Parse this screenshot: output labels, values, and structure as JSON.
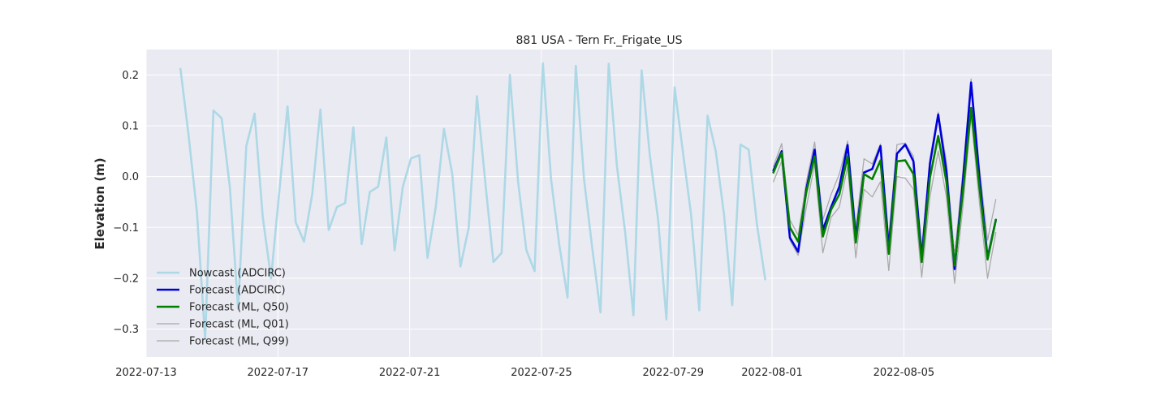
{
  "chart_data": {
    "type": "line",
    "title": "881 USA - Tern Fr._Frigate_US",
    "xlabel": "",
    "ylabel": "Elevation (m)",
    "x_axis": "date",
    "xlim": [
      "2022-07-13T00:00",
      "2022-08-09T12:00"
    ],
    "ylim": [
      -0.355,
      0.25
    ],
    "x_ticks": [
      "2022-07-13",
      "2022-07-17",
      "2022-07-21",
      "2022-07-25",
      "2022-07-29",
      "2022-08-01",
      "2022-08-05"
    ],
    "y_ticks": [
      0.2,
      0.1,
      0.0,
      -0.1,
      -0.2,
      -0.3
    ],
    "y_tick_labels": [
      "0.2",
      "0.1",
      "0.0",
      "−0.1",
      "−0.2",
      "−0.3"
    ],
    "grid": true,
    "legend_position": "lower-left",
    "series": [
      {
        "name": "Nowcast (ADCIRC)",
        "color": "#add8e6",
        "width": 2.6,
        "points": [
          [
            "2022-07-14T01:00",
            0.212
          ],
          [
            "2022-07-14T07:00",
            0.08
          ],
          [
            "2022-07-14T13:00",
            -0.07
          ],
          [
            "2022-07-14T19:00",
            -0.32
          ],
          [
            "2022-07-15T01:00",
            0.13
          ],
          [
            "2022-07-15T07:00",
            0.115
          ],
          [
            "2022-07-15T13:00",
            -0.02
          ],
          [
            "2022-07-15T19:00",
            -0.26
          ],
          [
            "2022-07-16T01:00",
            0.06
          ],
          [
            "2022-07-16T07:00",
            0.124
          ],
          [
            "2022-07-16T13:00",
            -0.08
          ],
          [
            "2022-07-16T19:00",
            -0.2
          ],
          [
            "2022-07-17T01:00",
            -0.03
          ],
          [
            "2022-07-17T07:00",
            0.138
          ],
          [
            "2022-07-17T13:00",
            -0.09
          ],
          [
            "2022-07-17T19:00",
            -0.128
          ],
          [
            "2022-07-18T01:00",
            -0.035
          ],
          [
            "2022-07-18T07:00",
            0.132
          ],
          [
            "2022-07-18T13:00",
            -0.105
          ],
          [
            "2022-07-18T19:00",
            -0.06
          ],
          [
            "2022-07-19T01:00",
            -0.052
          ],
          [
            "2022-07-19T07:00",
            0.097
          ],
          [
            "2022-07-19T13:00",
            -0.133
          ],
          [
            "2022-07-19T19:00",
            -0.03
          ],
          [
            "2022-07-20T01:00",
            -0.02
          ],
          [
            "2022-07-20T07:00",
            0.077
          ],
          [
            "2022-07-20T13:00",
            -0.145
          ],
          [
            "2022-07-20T19:00",
            -0.02
          ],
          [
            "2022-07-21T01:00",
            0.036
          ],
          [
            "2022-07-21T07:00",
            0.042
          ],
          [
            "2022-07-21T13:00",
            -0.16
          ],
          [
            "2022-07-21T19:00",
            -0.06
          ],
          [
            "2022-07-22T01:00",
            0.094
          ],
          [
            "2022-07-22T07:00",
            0.005
          ],
          [
            "2022-07-22T13:00",
            -0.177
          ],
          [
            "2022-07-22T19:00",
            -0.1
          ],
          [
            "2022-07-23T01:00",
            0.158
          ],
          [
            "2022-07-23T07:00",
            -0.01
          ],
          [
            "2022-07-23T13:00",
            -0.168
          ],
          [
            "2022-07-23T19:00",
            -0.15
          ],
          [
            "2022-07-24T01:00",
            0.2
          ],
          [
            "2022-07-24T07:00",
            -0.01
          ],
          [
            "2022-07-24T13:00",
            -0.145
          ],
          [
            "2022-07-24T19:00",
            -0.186
          ],
          [
            "2022-07-25T01:00",
            0.223
          ],
          [
            "2022-07-25T07:00",
            -0.005
          ],
          [
            "2022-07-25T13:00",
            -0.135
          ],
          [
            "2022-07-25T19:00",
            -0.238
          ],
          [
            "2022-07-26T01:00",
            0.218
          ],
          [
            "2022-07-26T07:00",
            -0.005
          ],
          [
            "2022-07-26T13:00",
            -0.14
          ],
          [
            "2022-07-26T19:00",
            -0.267
          ],
          [
            "2022-07-27T01:00",
            0.222
          ],
          [
            "2022-07-27T07:00",
            0.02
          ],
          [
            "2022-07-27T13:00",
            -0.11
          ],
          [
            "2022-07-27T19:00",
            -0.273
          ],
          [
            "2022-07-28T01:00",
            0.209
          ],
          [
            "2022-07-28T07:00",
            0.04
          ],
          [
            "2022-07-28T13:00",
            -0.085
          ],
          [
            "2022-07-28T19:00",
            -0.281
          ],
          [
            "2022-07-29T01:00",
            0.176
          ],
          [
            "2022-07-29T07:00",
            0.05
          ],
          [
            "2022-07-29T13:00",
            -0.075
          ],
          [
            "2022-07-29T19:00",
            -0.263
          ],
          [
            "2022-07-30T01:00",
            0.12
          ],
          [
            "2022-07-30T07:00",
            0.05
          ],
          [
            "2022-07-30T13:00",
            -0.075
          ],
          [
            "2022-07-30T19:00",
            -0.253
          ],
          [
            "2022-07-31T01:00",
            0.063
          ],
          [
            "2022-07-31T07:00",
            0.053
          ],
          [
            "2022-07-31T13:00",
            -0.095
          ],
          [
            "2022-07-31T19:00",
            -0.202
          ]
        ]
      },
      {
        "name": "Forecast (ADCIRC)",
        "color": "#0000dd",
        "width": 2.6,
        "points": [
          [
            "2022-08-01T01:00",
            0.012
          ],
          [
            "2022-08-01T07:00",
            0.05
          ],
          [
            "2022-08-01T13:00",
            -0.12
          ],
          [
            "2022-08-01T19:00",
            -0.148
          ],
          [
            "2022-08-02T01:00",
            -0.025
          ],
          [
            "2022-08-02T07:00",
            0.053
          ],
          [
            "2022-08-02T13:00",
            -0.105
          ],
          [
            "2022-08-02T19:00",
            -0.06
          ],
          [
            "2022-08-03T01:00",
            -0.02
          ],
          [
            "2022-08-03T07:00",
            0.062
          ],
          [
            "2022-08-03T13:00",
            -0.12
          ],
          [
            "2022-08-03T19:00",
            0.008
          ],
          [
            "2022-08-04T01:00",
            0.015
          ],
          [
            "2022-08-04T07:00",
            0.06
          ],
          [
            "2022-08-04T13:00",
            -0.14
          ],
          [
            "2022-08-04T19:00",
            0.045
          ],
          [
            "2022-08-05T01:00",
            0.063
          ],
          [
            "2022-08-05T07:00",
            0.03
          ],
          [
            "2022-08-05T13:00",
            -0.16
          ],
          [
            "2022-08-05T19:00",
            0.025
          ],
          [
            "2022-08-06T01:00",
            0.122
          ],
          [
            "2022-08-06T07:00",
            0.01
          ],
          [
            "2022-08-06T13:00",
            -0.182
          ],
          [
            "2022-08-06T19:00",
            -0.01
          ],
          [
            "2022-08-07T01:00",
            0.185
          ],
          [
            "2022-08-07T07:00",
            0.0
          ],
          [
            "2022-08-07T13:00",
            -0.16
          ],
          [
            "2022-08-07T19:00",
            -0.085
          ]
        ]
      },
      {
        "name": "Forecast (ML, Q50)",
        "color": "#008000",
        "width": 2.6,
        "points": [
          [
            "2022-08-01T01:00",
            0.008
          ],
          [
            "2022-08-01T07:00",
            0.047
          ],
          [
            "2022-08-01T13:00",
            -0.1
          ],
          [
            "2022-08-01T19:00",
            -0.128
          ],
          [
            "2022-08-02T01:00",
            -0.03
          ],
          [
            "2022-08-02T07:00",
            0.04
          ],
          [
            "2022-08-02T13:00",
            -0.118
          ],
          [
            "2022-08-02T19:00",
            -0.065
          ],
          [
            "2022-08-03T01:00",
            -0.035
          ],
          [
            "2022-08-03T07:00",
            0.04
          ],
          [
            "2022-08-03T13:00",
            -0.13
          ],
          [
            "2022-08-03T19:00",
            0.005
          ],
          [
            "2022-08-04T01:00",
            -0.005
          ],
          [
            "2022-08-04T07:00",
            0.032
          ],
          [
            "2022-08-04T13:00",
            -0.152
          ],
          [
            "2022-08-04T19:00",
            0.03
          ],
          [
            "2022-08-05T01:00",
            0.032
          ],
          [
            "2022-08-05T07:00",
            0.005
          ],
          [
            "2022-08-05T13:00",
            -0.168
          ],
          [
            "2022-08-05T19:00",
            -0.002
          ],
          [
            "2022-08-06T01:00",
            0.08
          ],
          [
            "2022-08-06T07:00",
            -0.01
          ],
          [
            "2022-08-06T13:00",
            -0.175
          ],
          [
            "2022-08-06T19:00",
            -0.03
          ],
          [
            "2022-08-07T01:00",
            0.135
          ],
          [
            "2022-08-07T07:00",
            -0.02
          ],
          [
            "2022-08-07T13:00",
            -0.163
          ],
          [
            "2022-08-07T19:00",
            -0.085
          ]
        ]
      },
      {
        "name": "Forecast (ML, Q01)",
        "color": "#aaaaaa",
        "width": 1.3,
        "points": [
          [
            "2022-08-01T01:00",
            -0.01
          ],
          [
            "2022-08-01T07:00",
            0.03
          ],
          [
            "2022-08-01T13:00",
            -0.125
          ],
          [
            "2022-08-01T19:00",
            -0.155
          ],
          [
            "2022-08-02T01:00",
            -0.06
          ],
          [
            "2022-08-02T07:00",
            0.025
          ],
          [
            "2022-08-02T13:00",
            -0.15
          ],
          [
            "2022-08-02T19:00",
            -0.08
          ],
          [
            "2022-08-03T01:00",
            -0.06
          ],
          [
            "2022-08-03T07:00",
            0.02
          ],
          [
            "2022-08-03T13:00",
            -0.16
          ],
          [
            "2022-08-03T19:00",
            -0.025
          ],
          [
            "2022-08-04T01:00",
            -0.04
          ],
          [
            "2022-08-04T07:00",
            -0.01
          ],
          [
            "2022-08-04T13:00",
            -0.185
          ],
          [
            "2022-08-04T19:00",
            0.0
          ],
          [
            "2022-08-05T01:00",
            -0.003
          ],
          [
            "2022-08-05T07:00",
            -0.025
          ],
          [
            "2022-08-05T13:00",
            -0.198
          ],
          [
            "2022-08-05T19:00",
            -0.04
          ],
          [
            "2022-08-06T01:00",
            0.05
          ],
          [
            "2022-08-06T07:00",
            -0.04
          ],
          [
            "2022-08-06T13:00",
            -0.21
          ],
          [
            "2022-08-06T19:00",
            -0.06
          ],
          [
            "2022-08-07T01:00",
            0.12
          ],
          [
            "2022-08-07T07:00",
            -0.05
          ],
          [
            "2022-08-07T13:00",
            -0.2
          ],
          [
            "2022-08-07T19:00",
            -0.11
          ]
        ]
      },
      {
        "name": "Forecast (ML, Q99)",
        "color": "#aaaaaa",
        "width": 1.3,
        "points": [
          [
            "2022-08-01T01:00",
            0.02
          ],
          [
            "2022-08-01T07:00",
            0.065
          ],
          [
            "2022-08-01T13:00",
            -0.085
          ],
          [
            "2022-08-01T19:00",
            -0.115
          ],
          [
            "2022-08-02T01:00",
            -0.01
          ],
          [
            "2022-08-02T07:00",
            0.068
          ],
          [
            "2022-08-02T13:00",
            -0.085
          ],
          [
            "2022-08-02T19:00",
            -0.035
          ],
          [
            "2022-08-03T01:00",
            0.005
          ],
          [
            "2022-08-03T07:00",
            0.07
          ],
          [
            "2022-08-03T13:00",
            -0.1
          ],
          [
            "2022-08-03T19:00",
            0.035
          ],
          [
            "2022-08-04T01:00",
            0.025
          ],
          [
            "2022-08-04T07:00",
            0.064
          ],
          [
            "2022-08-04T13:00",
            -0.12
          ],
          [
            "2022-08-04T19:00",
            0.063
          ],
          [
            "2022-08-05T01:00",
            0.066
          ],
          [
            "2022-08-05T07:00",
            0.04
          ],
          [
            "2022-08-05T13:00",
            -0.14
          ],
          [
            "2022-08-05T19:00",
            0.035
          ],
          [
            "2022-08-06T01:00",
            0.127
          ],
          [
            "2022-08-06T07:00",
            0.03
          ],
          [
            "2022-08-06T13:00",
            -0.155
          ],
          [
            "2022-08-06T19:00",
            0.01
          ],
          [
            "2022-08-07T01:00",
            0.192
          ],
          [
            "2022-08-07T07:00",
            0.02
          ],
          [
            "2022-08-07T13:00",
            -0.125
          ],
          [
            "2022-08-07T19:00",
            -0.045
          ]
        ]
      }
    ]
  }
}
